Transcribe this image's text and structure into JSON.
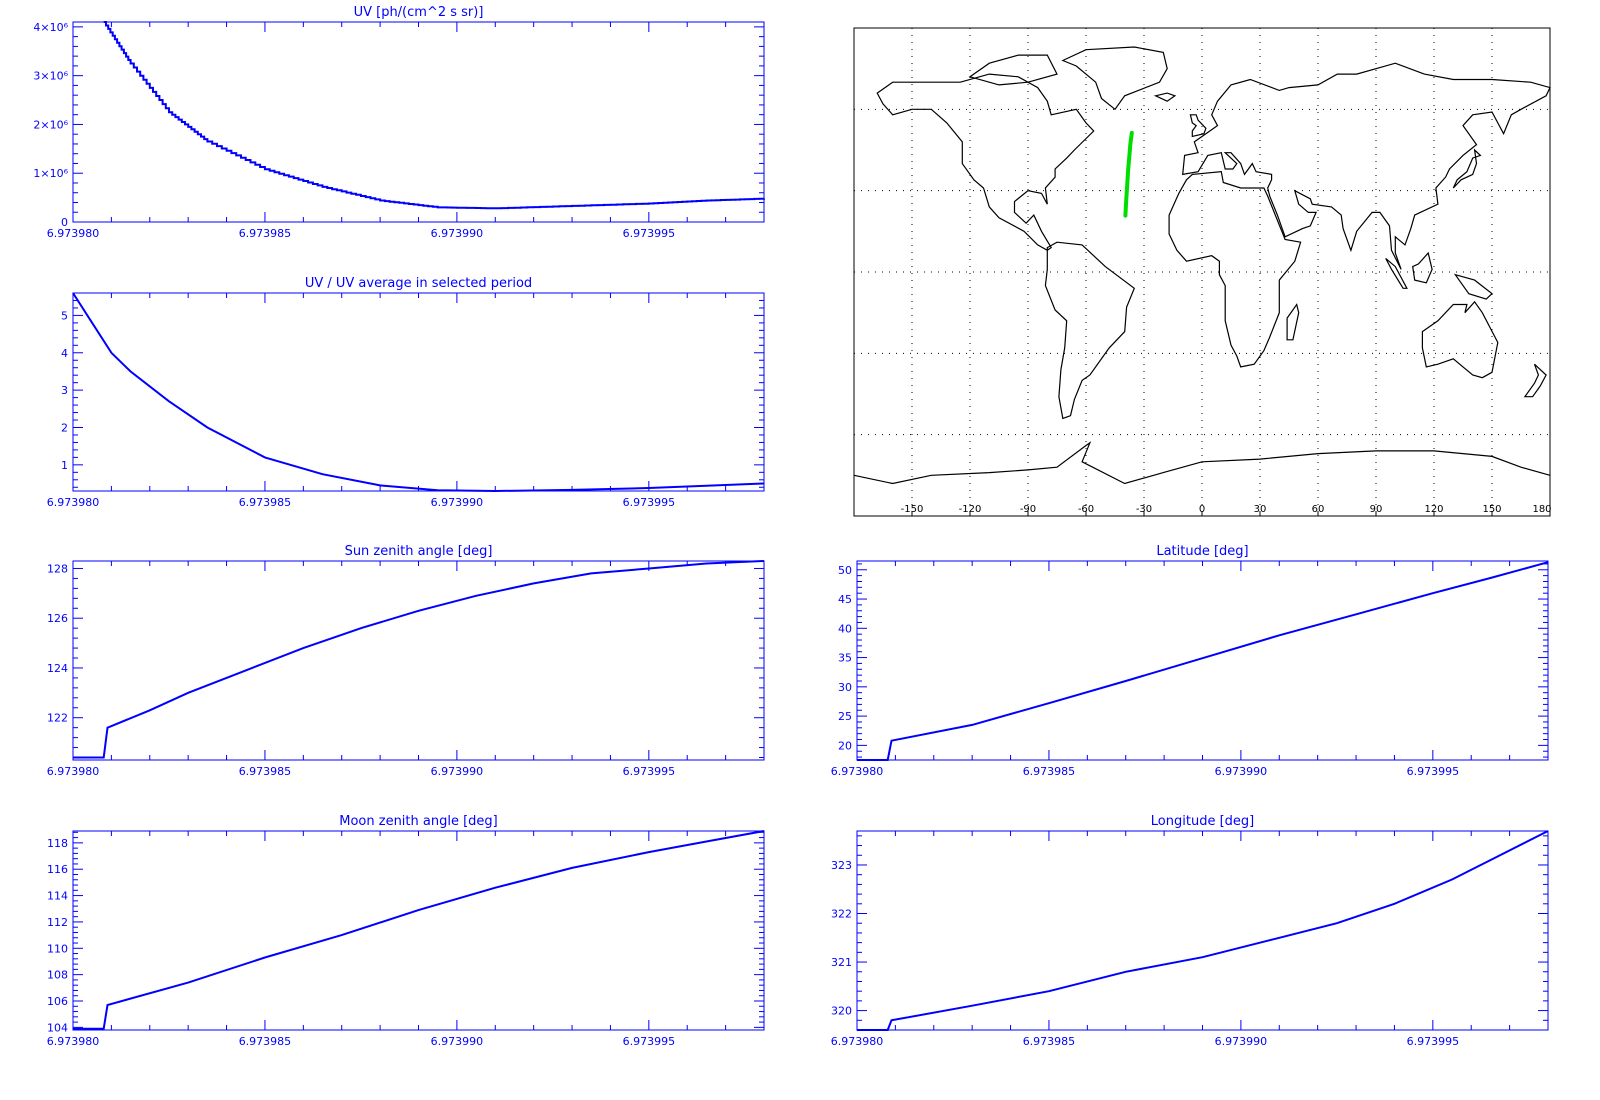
{
  "colors": {
    "plot": "#0000ff",
    "track": "#00dd00",
    "map_line": "#000000",
    "grid": "#000000"
  },
  "chart_data": [
    {
      "id": "uv",
      "type": "line",
      "step": true,
      "title": "UV [ph/(cm^2 s sr)]",
      "xlim": [
        6.97398,
        6.973998
      ],
      "ylim": [
        0,
        4100000
      ],
      "xticks": [
        6.97398,
        6.973985,
        6.97399,
        6.973995
      ],
      "xtick_labels": [
        "6.973980",
        "6.973985",
        "6.973990",
        "6.973995"
      ],
      "yticks": [
        0,
        1000000,
        2000000,
        3000000,
        4000000
      ],
      "ytick_labels": [
        "0",
        "1×10⁶",
        "2×10⁶",
        "3×10⁶",
        "4×10⁶"
      ],
      "x": [
        6.9739808,
        6.9739815,
        6.9739825,
        6.9739835,
        6.973985,
        6.9739865,
        6.973988,
        6.9739895,
        6.973991,
        6.973993,
        6.973995,
        6.9739965,
        6.973998
      ],
      "y": [
        4100000,
        3250000,
        2250000,
        1650000,
        1080000,
        720000,
        440000,
        300000,
        280000,
        330000,
        380000,
        440000,
        480000
      ]
    },
    {
      "id": "uv_ratio",
      "type": "line",
      "title": "UV / UV average in selected period",
      "xlim": [
        6.97398,
        6.973998
      ],
      "ylim": [
        0.3,
        5.6
      ],
      "xticks": [
        6.97398,
        6.973985,
        6.97399,
        6.973995
      ],
      "xtick_labels": [
        "6.973980",
        "6.973985",
        "6.973990",
        "6.973995"
      ],
      "yticks": [
        1,
        2,
        3,
        4,
        5
      ],
      "ytick_labels": [
        "1",
        "2",
        "3",
        "4",
        "5"
      ],
      "x": [
        6.97398,
        6.9739805,
        6.973981,
        6.9739815,
        6.9739825,
        6.9739835,
        6.973985,
        6.9739865,
        6.973988,
        6.9739895,
        6.973991,
        6.973993,
        6.973995,
        6.9739965,
        6.973998
      ],
      "y": [
        5.6,
        4.8,
        4.0,
        3.5,
        2.7,
        2.0,
        1.2,
        0.75,
        0.45,
        0.32,
        0.3,
        0.33,
        0.38,
        0.44,
        0.5
      ]
    },
    {
      "id": "sun",
      "type": "line",
      "title": "Sun zenith angle [deg]",
      "xlim": [
        6.97398,
        6.973998
      ],
      "ylim": [
        120.3,
        128.3
      ],
      "xticks": [
        6.97398,
        6.973985,
        6.97399,
        6.973995
      ],
      "xtick_labels": [
        "6.973980",
        "6.973985",
        "6.973990",
        "6.973995"
      ],
      "yticks": [
        122,
        124,
        126,
        128
      ],
      "ytick_labels": [
        "122",
        "124",
        "126",
        "128"
      ],
      "x": [
        6.97398,
        6.9739808,
        6.9739809,
        6.973982,
        6.973983,
        6.9739845,
        6.973986,
        6.9739875,
        6.973989,
        6.9739905,
        6.973992,
        6.9739935,
        6.973995,
        6.9739965,
        6.973998
      ],
      "y": [
        120.4,
        120.4,
        121.6,
        122.3,
        123.0,
        123.9,
        124.8,
        125.6,
        126.3,
        126.9,
        127.4,
        127.8,
        128.0,
        128.2,
        128.3
      ]
    },
    {
      "id": "lat",
      "type": "line",
      "title": "Latitude [deg]",
      "xlim": [
        6.97398,
        6.973998
      ],
      "ylim": [
        17.5,
        51.5
      ],
      "xticks": [
        6.97398,
        6.973985,
        6.97399,
        6.973995
      ],
      "xtick_labels": [
        "6.973980",
        "6.973985",
        "6.973990",
        "6.973995"
      ],
      "yticks": [
        20,
        25,
        30,
        35,
        40,
        45,
        50
      ],
      "ytick_labels": [
        "20",
        "25",
        "30",
        "35",
        "40",
        "45",
        "50"
      ],
      "x": [
        6.97398,
        6.9739808,
        6.9739809,
        6.973983,
        6.973985,
        6.973987,
        6.973989,
        6.973991,
        6.973993,
        6.973995,
        6.9739965,
        6.973998
      ],
      "y": [
        17.5,
        17.5,
        20.8,
        23.5,
        27.2,
        31.0,
        34.9,
        38.8,
        42.4,
        46.0,
        48.6,
        51.3
      ]
    },
    {
      "id": "moon",
      "type": "line",
      "title": "Moon zenith angle [deg]",
      "xlim": [
        6.97398,
        6.973998
      ],
      "ylim": [
        103.8,
        118.9
      ],
      "xticks": [
        6.97398,
        6.973985,
        6.97399,
        6.973995
      ],
      "xtick_labels": [
        "6.973980",
        "6.973985",
        "6.973990",
        "6.973995"
      ],
      "yticks": [
        104,
        106,
        108,
        110,
        112,
        114,
        116,
        118
      ],
      "ytick_labels": [
        "104",
        "106",
        "108",
        "110",
        "112",
        "114",
        "116",
        "118"
      ],
      "x": [
        6.97398,
        6.9739808,
        6.9739809,
        6.973983,
        6.973985,
        6.973987,
        6.973989,
        6.973991,
        6.973993,
        6.973995,
        6.9739965,
        6.973998
      ],
      "y": [
        103.9,
        103.9,
        105.7,
        107.4,
        109.3,
        111.0,
        112.9,
        114.6,
        116.1,
        117.3,
        118.1,
        118.9
      ]
    },
    {
      "id": "lon",
      "type": "line",
      "title": "Longitude [deg]",
      "xlim": [
        6.97398,
        6.973998
      ],
      "ylim": [
        319.6,
        323.7
      ],
      "xticks": [
        6.97398,
        6.973985,
        6.97399,
        6.973995
      ],
      "xtick_labels": [
        "6.973980",
        "6.973985",
        "6.973990",
        "6.973995"
      ],
      "yticks": [
        320,
        321,
        322,
        323
      ],
      "ytick_labels": [
        "320",
        "321",
        "322",
        "323"
      ],
      "x": [
        6.97398,
        6.9739808,
        6.9739809,
        6.973983,
        6.973985,
        6.973987,
        6.973989,
        6.973991,
        6.9739925,
        6.973994,
        6.9739955,
        6.9739965,
        6.973998
      ],
      "y": [
        319.6,
        319.6,
        319.8,
        320.1,
        320.4,
        320.8,
        321.1,
        321.5,
        321.8,
        322.2,
        322.7,
        323.1,
        323.7
      ]
    },
    {
      "id": "map",
      "type": "map",
      "title": "",
      "xticks": [
        -150,
        -120,
        -90,
        -60,
        -30,
        0,
        30,
        60,
        90,
        120,
        150,
        180
      ],
      "xtick_labels": [
        "-150",
        "-120",
        "-90",
        "-60",
        "-30",
        "0",
        "30",
        "60",
        "90",
        "120",
        "150",
        "180"
      ],
      "grid_lat": [
        60,
        30,
        0,
        -30,
        -60
      ],
      "grid_lon": [
        -150,
        -120,
        -90,
        -60,
        -30,
        0,
        30,
        60,
        90,
        120,
        150
      ],
      "track_lon": [
        -39.6,
        -39.2,
        -38.7,
        -38.2,
        -37.6,
        -37.1,
        -36.3
      ],
      "track_lat": [
        20.8,
        26.5,
        32.0,
        37.5,
        42.5,
        47.0,
        51.3
      ]
    }
  ]
}
